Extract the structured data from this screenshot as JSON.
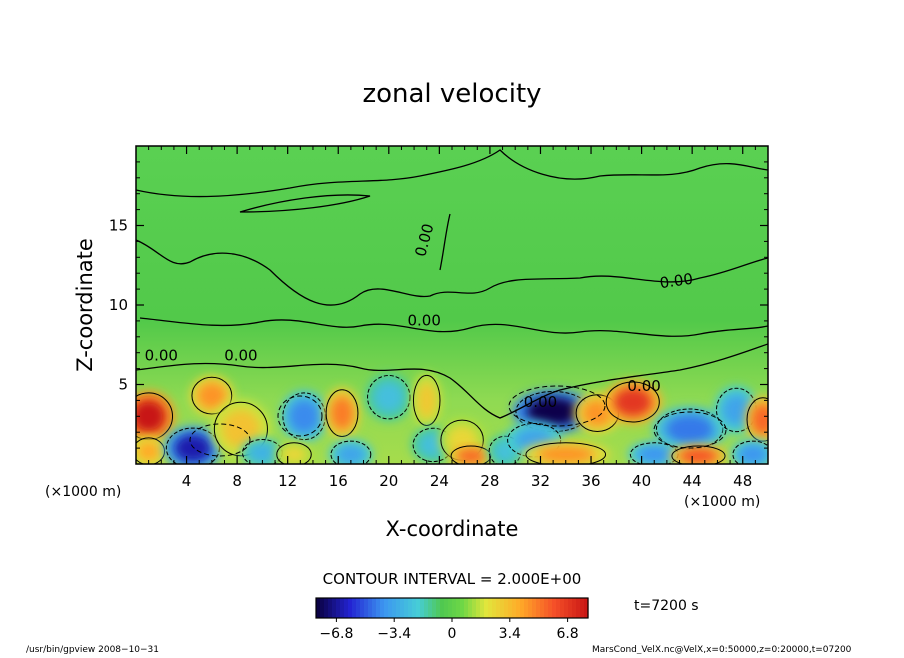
{
  "chart_data": {
    "type": "heatmap",
    "title": "zonal velocity",
    "xlabel": "X-coordinate",
    "ylabel": "Z-coordinate",
    "x_unit_left": "(×1000 m)",
    "x_unit_right": "(×1000 m)",
    "xlim": [
      0,
      50
    ],
    "ylim": [
      0,
      20
    ],
    "xticks": [
      "4",
      "8",
      "12",
      "16",
      "20",
      "24",
      "28",
      "32",
      "36",
      "40",
      "44",
      "48"
    ],
    "yticks": [
      "5",
      "10",
      "15"
    ],
    "contour_interval_text": "CONTOUR INTERVAL = 2.000E+00",
    "contour_labels": [
      {
        "x": 23.2,
        "y": 14.0,
        "text": "0.00",
        "rotate": -75
      },
      {
        "x": 42.8,
        "y": 11.2,
        "text": "0.00",
        "rotate": -8
      },
      {
        "x": 2.0,
        "y": 6.5,
        "text": "0.00",
        "rotate": 0
      },
      {
        "x": 8.3,
        "y": 6.5,
        "text": "0.00",
        "rotate": 0
      },
      {
        "x": 22.8,
        "y": 8.7,
        "text": "0.00",
        "rotate": 0
      },
      {
        "x": 32.0,
        "y": 3.6,
        "text": "0.00",
        "rotate": 0
      },
      {
        "x": 40.2,
        "y": 4.6,
        "text": "0.00",
        "rotate": 0
      }
    ],
    "colorbar": {
      "min": -8,
      "max": 8,
      "tick_labels": [
        "−6.8",
        "−3.4",
        "0",
        "3.4",
        "6.8"
      ],
      "tick_values": [
        -6.8,
        -3.4,
        0,
        3.4,
        6.8
      ]
    },
    "time_label": "t=7200 s",
    "cells": [
      {
        "x": 1.0,
        "z": 3.0,
        "v": 8.0,
        "rx": 1.8,
        "rz": 1.4
      },
      {
        "x": 1.0,
        "z": 0.8,
        "v": 4.0,
        "rx": 1.2,
        "rz": 0.8
      },
      {
        "x": 4.5,
        "z": 1.0,
        "v": -6.5,
        "rx": 2.0,
        "rz": 1.2
      },
      {
        "x": 6.0,
        "z": 4.3,
        "v": 4.5,
        "rx": 1.5,
        "rz": 1.1
      },
      {
        "x": 8.3,
        "z": 2.2,
        "v": 3.2,
        "rx": 2.0,
        "rz": 1.6
      },
      {
        "x": 10.0,
        "z": 0.7,
        "v": -3.0,
        "rx": 1.5,
        "rz": 0.8
      },
      {
        "x": 13.3,
        "z": 3.0,
        "v": -4.2,
        "rx": 1.6,
        "rz": 1.4
      },
      {
        "x": 12.5,
        "z": 0.6,
        "v": 2.5,
        "rx": 1.3,
        "rz": 0.7
      },
      {
        "x": 16.3,
        "z": 3.2,
        "v": 5.0,
        "rx": 1.2,
        "rz": 1.4
      },
      {
        "x": 17.0,
        "z": 0.6,
        "v": -3.5,
        "rx": 1.5,
        "rz": 0.8
      },
      {
        "x": 20.0,
        "z": 4.2,
        "v": -2.5,
        "rx": 1.6,
        "rz": 1.3
      },
      {
        "x": 23.0,
        "z": 4.0,
        "v": 3.0,
        "rx": 1.0,
        "rz": 1.5
      },
      {
        "x": 23.5,
        "z": 1.2,
        "v": -2.5,
        "rx": 1.5,
        "rz": 1.0
      },
      {
        "x": 25.8,
        "z": 1.5,
        "v": 2.5,
        "rx": 1.6,
        "rz": 1.2
      },
      {
        "x": 26.5,
        "z": 0.5,
        "v": 5.5,
        "rx": 1.5,
        "rz": 0.6
      },
      {
        "x": 29.2,
        "z": 0.8,
        "v": -2.5,
        "rx": 1.2,
        "rz": 0.9
      },
      {
        "x": 33.0,
        "z": 3.3,
        "v": -7.8,
        "rx": 2.8,
        "rz": 1.2
      },
      {
        "x": 31.5,
        "z": 1.5,
        "v": -3.5,
        "rx": 2.0,
        "rz": 1.0
      },
      {
        "x": 34.0,
        "z": 0.6,
        "v": 4.5,
        "rx": 3.0,
        "rz": 0.7
      },
      {
        "x": 36.5,
        "z": 3.2,
        "v": 4.5,
        "rx": 1.6,
        "rz": 1.1
      },
      {
        "x": 39.3,
        "z": 3.9,
        "v": 6.8,
        "rx": 2.0,
        "rz": 1.2
      },
      {
        "x": 43.8,
        "z": 2.2,
        "v": -4.5,
        "rx": 2.5,
        "rz": 1.2
      },
      {
        "x": 41.0,
        "z": 0.6,
        "v": -4.0,
        "rx": 1.8,
        "rz": 0.7
      },
      {
        "x": 44.5,
        "z": 0.5,
        "v": 6.0,
        "rx": 2.0,
        "rz": 0.6
      },
      {
        "x": 47.5,
        "z": 3.4,
        "v": -3.5,
        "rx": 1.5,
        "rz": 1.3
      },
      {
        "x": 49.6,
        "z": 2.8,
        "v": 5.5,
        "rx": 1.2,
        "rz": 1.3
      },
      {
        "x": 48.8,
        "z": 0.6,
        "v": -4.0,
        "rx": 1.5,
        "rz": 0.8
      }
    ]
  },
  "footer": {
    "program": "/usr/bin/gpview  2008−10−31",
    "source": "MarsCond_VelX.nc@VelX,x=0:50000,z=0:20000,t=07200"
  }
}
